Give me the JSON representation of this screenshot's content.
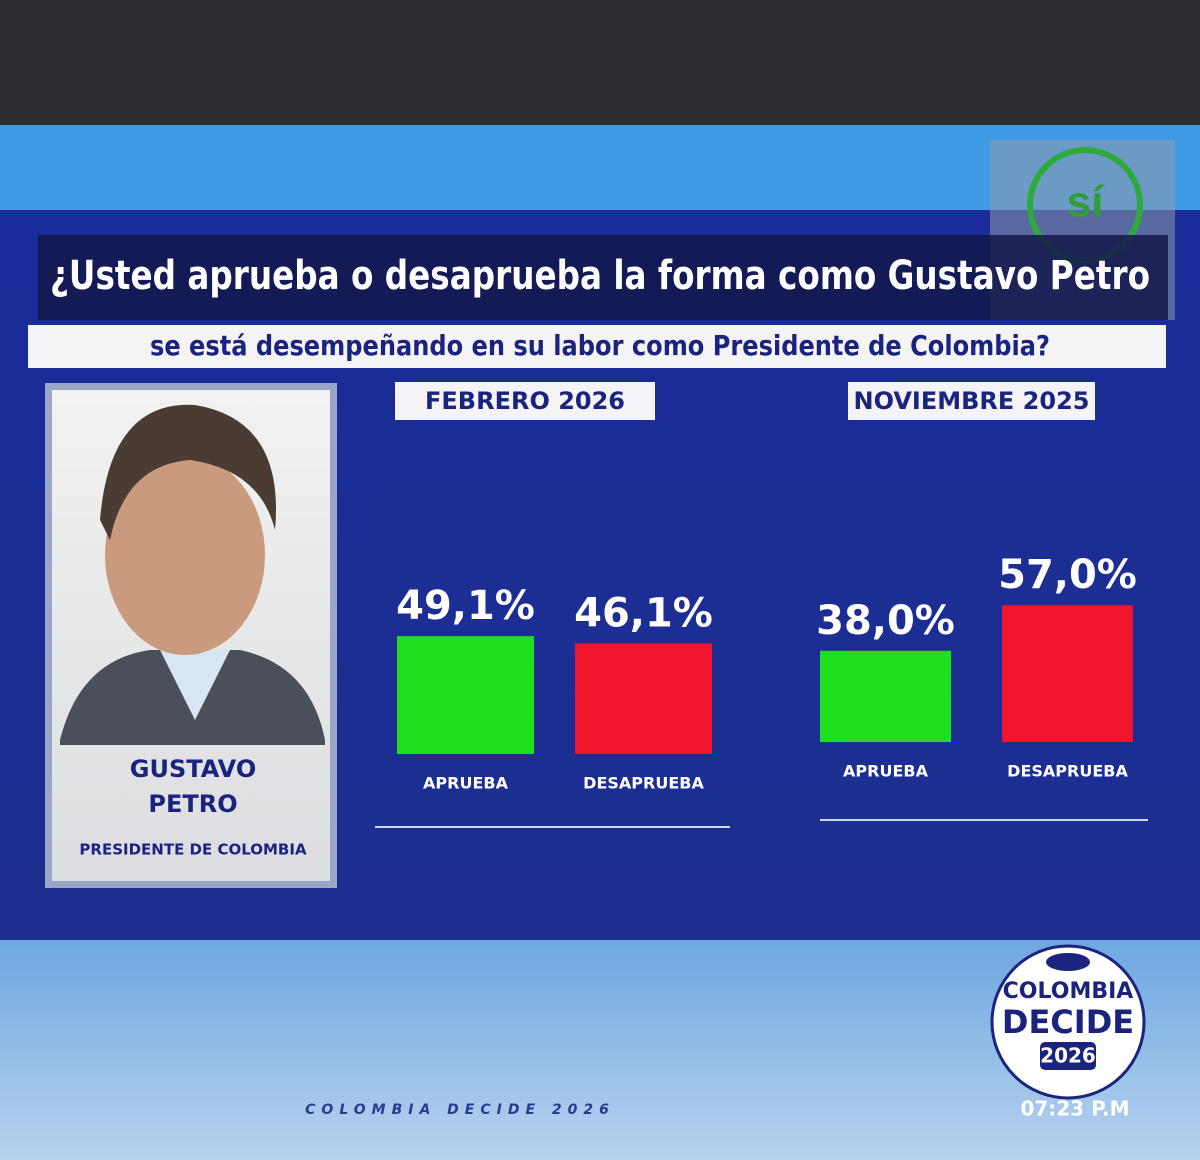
{
  "header": {
    "title": "¿Usted aprueba o desaprueba la forma como Gustavo Petro",
    "subtitle": "se está desempeñando en su labor como Presidente de Colombia?",
    "logo": "sí"
  },
  "profile": {
    "name_line_1": "GUSTAVO",
    "name_line_2": "PETRO",
    "role": "PRESIDENTE DE COLOMBIA"
  },
  "chart_data": [
    {
      "type": "bar",
      "title": "FEBRERO 2026",
      "categories": [
        "APRUEBA",
        "DESAPRUEBA"
      ],
      "values": [
        49.1,
        46.1
      ],
      "value_labels": [
        "49,1%",
        "46,1%"
      ],
      "colors": [
        "#1fe01f",
        "#f0142c"
      ]
    },
    {
      "type": "bar",
      "title": "NOVIEMBRE 2025",
      "categories": [
        "APRUEBA",
        "DESAPRUEBA"
      ],
      "values": [
        38.0,
        57.0
      ],
      "value_labels": [
        "38,0%",
        "57,0%"
      ],
      "colors": [
        "#1fe01f",
        "#f0142c"
      ]
    }
  ],
  "footer": {
    "brand_line_1": "COLOMBIA",
    "brand_line_2": "DECIDE",
    "brand_year": "2026",
    "ticker": "COLOMBIA DECIDE 2026",
    "time": "07:23 P.M"
  }
}
